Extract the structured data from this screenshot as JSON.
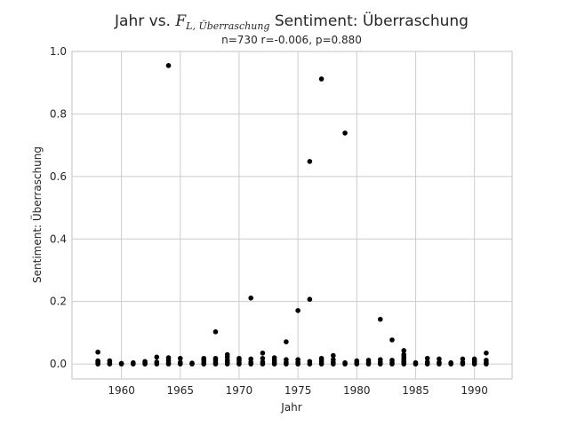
{
  "chart_data": {
    "type": "scatter",
    "title": {
      "prefix": "Jahr vs. ",
      "math_main": "F",
      "math_sub": "L, Überraschung",
      "suffix": " Sentiment: Überraschung"
    },
    "subtitle": "n=730 r=-0.006, p=0.880",
    "xlabel": "Jahr",
    "ylabel": "Sentiment: Überraschung",
    "xlim": [
      1955.8,
      1993.2
    ],
    "ylim": [
      -0.048,
      1.0
    ],
    "xticks": [
      1960,
      1965,
      1970,
      1975,
      1980,
      1985,
      1990
    ],
    "yticks": [
      0.0,
      0.2,
      0.4,
      0.6,
      0.8,
      1.0
    ],
    "ytick_labels": [
      "0.0",
      "0.2",
      "0.4",
      "0.6",
      "0.8",
      "1.0"
    ],
    "grid": true,
    "marker_color": "#000000",
    "points": [
      [
        1958,
        0.0
      ],
      [
        1958,
        0.005
      ],
      [
        1958,
        0.01
      ],
      [
        1958,
        0.038
      ],
      [
        1959,
        0.0
      ],
      [
        1959,
        0.003
      ],
      [
        1959,
        0.01
      ],
      [
        1960,
        0.0
      ],
      [
        1960,
        0.002
      ],
      [
        1961,
        0.0
      ],
      [
        1961,
        0.004
      ],
      [
        1962,
        0.0
      ],
      [
        1962,
        0.003
      ],
      [
        1962,
        0.008
      ],
      [
        1963,
        0.0
      ],
      [
        1963,
        0.006
      ],
      [
        1963,
        0.022
      ],
      [
        1964,
        0.0
      ],
      [
        1964,
        0.004
      ],
      [
        1964,
        0.012
      ],
      [
        1964,
        0.02
      ],
      [
        1964,
        0.955
      ],
      [
        1965,
        0.0
      ],
      [
        1965,
        0.005
      ],
      [
        1965,
        0.018
      ],
      [
        1966,
        0.0
      ],
      [
        1966,
        0.003
      ],
      [
        1967,
        0.0
      ],
      [
        1967,
        0.006
      ],
      [
        1967,
        0.012
      ],
      [
        1967,
        0.018
      ],
      [
        1968,
        0.0
      ],
      [
        1968,
        0.005
      ],
      [
        1968,
        0.012
      ],
      [
        1968,
        0.018
      ],
      [
        1968,
        0.103
      ],
      [
        1969,
        0.0
      ],
      [
        1969,
        0.006
      ],
      [
        1969,
        0.012
      ],
      [
        1969,
        0.022
      ],
      [
        1969,
        0.03
      ],
      [
        1970,
        0.0
      ],
      [
        1970,
        0.005
      ],
      [
        1970,
        0.012
      ],
      [
        1970,
        0.018
      ],
      [
        1971,
        0.0
      ],
      [
        1971,
        0.006
      ],
      [
        1971,
        0.016
      ],
      [
        1971,
        0.211
      ],
      [
        1972,
        0.0
      ],
      [
        1972,
        0.006
      ],
      [
        1972,
        0.018
      ],
      [
        1972,
        0.035
      ],
      [
        1973,
        0.0
      ],
      [
        1973,
        0.005
      ],
      [
        1973,
        0.012
      ],
      [
        1973,
        0.02
      ],
      [
        1974,
        0.0
      ],
      [
        1974,
        0.005
      ],
      [
        1974,
        0.014
      ],
      [
        1974,
        0.071
      ],
      [
        1975,
        0.0
      ],
      [
        1975,
        0.006
      ],
      [
        1975,
        0.014
      ],
      [
        1975,
        0.171
      ],
      [
        1976,
        0.0
      ],
      [
        1976,
        0.008
      ],
      [
        1976,
        0.207
      ],
      [
        1976,
        0.648
      ],
      [
        1977,
        0.0
      ],
      [
        1977,
        0.006
      ],
      [
        1977,
        0.012
      ],
      [
        1977,
        0.018
      ],
      [
        1977,
        0.912
      ],
      [
        1978,
        0.0
      ],
      [
        1978,
        0.006
      ],
      [
        1978,
        0.014
      ],
      [
        1978,
        0.027
      ],
      [
        1979,
        0.0
      ],
      [
        1979,
        0.004
      ],
      [
        1979,
        0.739
      ],
      [
        1980,
        0.0
      ],
      [
        1980,
        0.004
      ],
      [
        1980,
        0.01
      ],
      [
        1981,
        0.0
      ],
      [
        1981,
        0.005
      ],
      [
        1981,
        0.012
      ],
      [
        1982,
        0.0
      ],
      [
        1982,
        0.006
      ],
      [
        1982,
        0.014
      ],
      [
        1982,
        0.143
      ],
      [
        1983,
        0.0
      ],
      [
        1983,
        0.005
      ],
      [
        1983,
        0.012
      ],
      [
        1983,
        0.077
      ],
      [
        1984,
        0.0
      ],
      [
        1984,
        0.005
      ],
      [
        1984,
        0.01
      ],
      [
        1984,
        0.016
      ],
      [
        1984,
        0.023
      ],
      [
        1984,
        0.03
      ],
      [
        1984,
        0.043
      ],
      [
        1985,
        0.0
      ],
      [
        1985,
        0.004
      ],
      [
        1986,
        0.0
      ],
      [
        1986,
        0.006
      ],
      [
        1986,
        0.018
      ],
      [
        1987,
        0.0
      ],
      [
        1987,
        0.005
      ],
      [
        1987,
        0.016
      ],
      [
        1988,
        0.0
      ],
      [
        1988,
        0.004
      ],
      [
        1989,
        0.0
      ],
      [
        1989,
        0.005
      ],
      [
        1989,
        0.016
      ],
      [
        1990,
        0.0
      ],
      [
        1990,
        0.006
      ],
      [
        1990,
        0.01
      ],
      [
        1990,
        0.016
      ],
      [
        1991,
        0.0
      ],
      [
        1991,
        0.005
      ],
      [
        1991,
        0.012
      ],
      [
        1991,
        0.035
      ]
    ]
  }
}
